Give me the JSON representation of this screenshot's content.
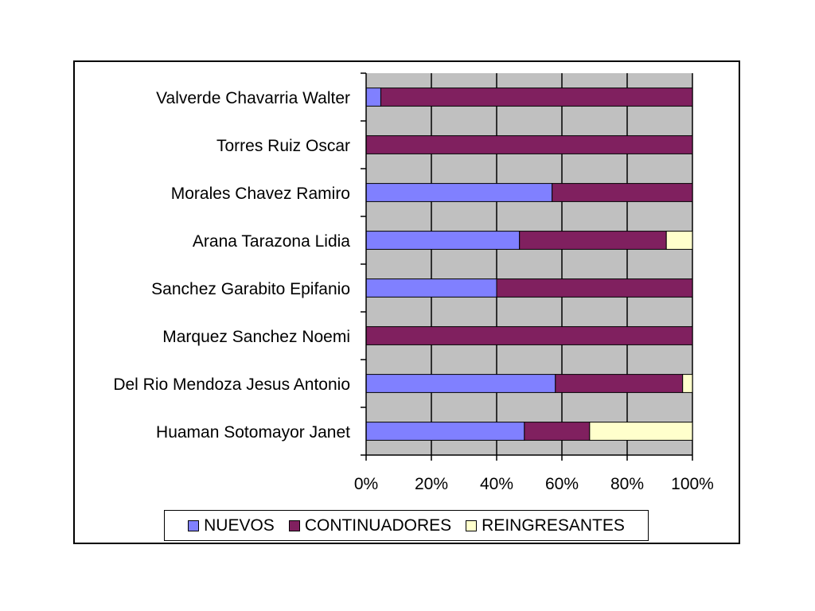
{
  "chart_data": {
    "type": "bar",
    "orientation": "horizontal",
    "stacked": "percent",
    "categories": [
      "Valverde Chavarria Walter",
      "Torres Ruiz Oscar",
      "Morales Chavez Ramiro",
      "Arana Tarazona Lidia",
      "Sanchez Garabito Epifanio",
      "Marquez Sanchez Noemi",
      "Del Rio Mendoza Jesus Antonio",
      "Huaman Sotomayor Janet"
    ],
    "series": [
      {
        "name": "NUEVOS",
        "color": "#8080ff",
        "values": [
          4.5,
          0,
          57,
          47,
          40,
          0,
          58,
          48.5
        ]
      },
      {
        "name": "CONTINUADORES",
        "color": "#80205f",
        "values": [
          95.5,
          100,
          43,
          45,
          60,
          100,
          39,
          20
        ]
      },
      {
        "name": "REINGRESANTES",
        "color": "#ffffcc",
        "values": [
          0,
          0,
          0,
          8,
          0,
          0,
          3,
          31.5
        ]
      }
    ],
    "xlim": [
      0,
      100
    ],
    "xticks": [
      "0%",
      "20%",
      "40%",
      "60%",
      "80%",
      "100%"
    ],
    "plot_background": "#c0c0c0",
    "grid": true,
    "legend_position": "bottom",
    "title": "",
    "xlabel": "",
    "ylabel": ""
  }
}
